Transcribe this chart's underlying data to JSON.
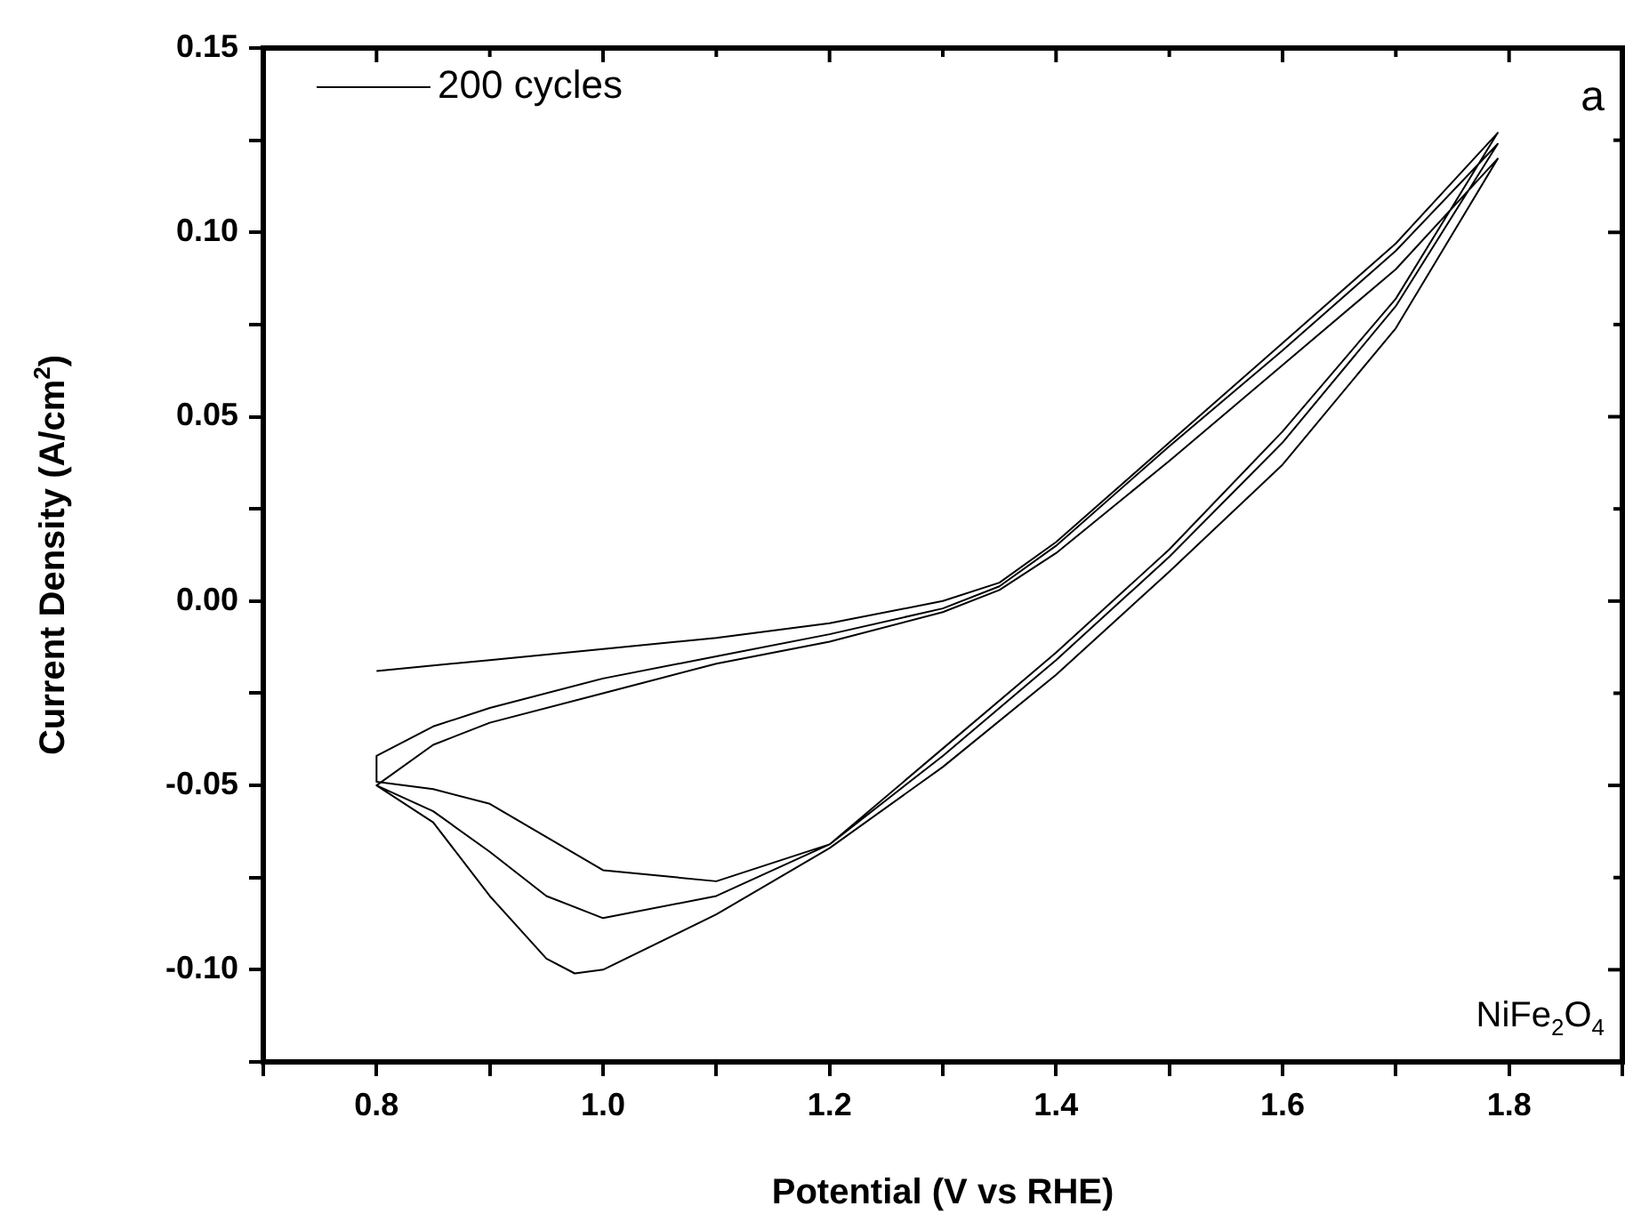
{
  "chart_data": {
    "type": "line",
    "xlabel": "Potential (V vs RHE)",
    "ylabel": "Current Density (A/cm$^{2}$)",
    "xlim": [
      0.7,
      1.9
    ],
    "ylim": [
      -0.125,
      0.15
    ],
    "xticks": [
      {
        "value": 0.7,
        "label": null
      },
      0.8,
      {
        "value": 0.9,
        "label": null
      },
      {
        "value": 1.0,
        "label": "1.0"
      },
      {
        "value": 1.1,
        "label": null
      },
      1.2,
      {
        "value": 1.3,
        "label": null
      },
      1.4,
      {
        "value": 1.5,
        "label": null
      },
      1.6,
      {
        "value": 1.7,
        "label": null
      },
      1.8,
      {
        "value": 1.9,
        "label": null
      }
    ],
    "yticks": [
      {
        "value": -0.125,
        "label": null
      },
      {
        "value": -0.1,
        "label": "-0.10"
      },
      {
        "value": -0.075,
        "label": null
      },
      {
        "value": -0.05,
        "label": "-0.05"
      },
      {
        "value": -0.025,
        "label": null
      },
      {
        "value": 0,
        "label": "0.00"
      },
      {
        "value": 0.025,
        "label": null
      },
      {
        "value": 0.05,
        "label": "0.05"
      },
      {
        "value": 0.075,
        "label": null
      },
      {
        "value": 0.1,
        "label": "0.10"
      },
      {
        "value": 0.125,
        "label": null
      },
      0.15
    ],
    "series": [
      {
        "name": "200 cycles",
        "color": "#000000",
        "x": [
          0.8,
          0.9,
          1.0,
          1.1,
          1.2,
          1.3,
          1.35,
          1.4,
          1.5,
          1.6,
          1.7,
          1.79,
          1.7,
          1.6,
          1.5,
          1.4,
          1.3,
          1.2,
          1.1,
          1.0,
          0.95,
          0.9,
          0.85,
          0.8,
          0.8,
          0.85,
          0.9,
          1.0,
          1.1,
          1.2,
          1.3,
          1.35,
          1.4,
          1.5,
          1.6,
          1.7,
          1.79,
          1.7,
          1.6,
          1.5,
          1.4,
          1.3,
          1.2,
          1.1,
          1.0,
          0.95,
          0.9,
          0.85,
          0.8,
          0.85,
          0.9,
          1.0,
          1.1,
          1.2,
          1.3,
          1.35,
          1.4,
          1.5,
          1.6,
          1.7,
          1.79,
          1.7,
          1.6,
          1.5,
          1.4,
          1.3,
          1.2,
          1.1,
          1.0,
          0.975,
          0.95,
          0.9,
          0.85,
          0.8
        ],
        "values": [
          -0.019,
          -0.016,
          -0.013,
          -0.01,
          -0.006,
          0.0,
          0.005,
          0.016,
          0.043,
          0.07,
          0.097,
          0.127,
          0.082,
          0.046,
          0.014,
          -0.014,
          -0.04,
          -0.066,
          -0.076,
          -0.073,
          -0.064,
          -0.055,
          -0.051,
          -0.049,
          -0.042,
          -0.034,
          -0.029,
          -0.021,
          -0.015,
          -0.009,
          -0.002,
          0.004,
          0.015,
          0.042,
          0.068,
          0.095,
          0.124,
          0.08,
          0.043,
          0.012,
          -0.016,
          -0.042,
          -0.066,
          -0.08,
          -0.086,
          -0.08,
          -0.068,
          -0.057,
          -0.05,
          -0.039,
          -0.033,
          -0.025,
          -0.017,
          -0.011,
          -0.003,
          0.003,
          0.013,
          0.038,
          0.064,
          0.09,
          0.12,
          0.074,
          0.037,
          0.008,
          -0.02,
          -0.045,
          -0.067,
          -0.085,
          -0.1,
          -0.101,
          -0.097,
          -0.08,
          -0.06,
          -0.05
        ]
      }
    ],
    "legend": "top left",
    "grid": false,
    "marker": "none",
    "line_style": "solid",
    "annotations": [
      "a",
      "NiFe$_{2}$O$_{4}$"
    ]
  }
}
